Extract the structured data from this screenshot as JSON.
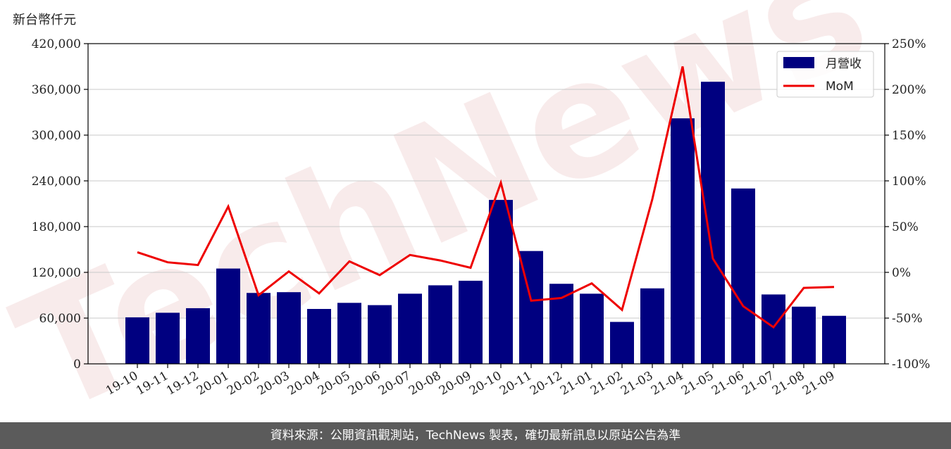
{
  "header": {
    "unit_label": "新台幣仟元"
  },
  "watermark": "TechNews",
  "footer": {
    "source_text": "資料來源：公開資訊觀測站，TechNews 製表，確切最新訊息以原站公告為準"
  },
  "chart_data": {
    "type": "bar",
    "categories": [
      "19-10",
      "19-11",
      "19-12",
      "20-01",
      "20-02",
      "20-03",
      "20-04",
      "20-05",
      "20-06",
      "20-07",
      "20-08",
      "20-09",
      "20-10",
      "20-11",
      "20-12",
      "21-01",
      "21-02",
      "21-03",
      "21-04",
      "21-05",
      "21-06",
      "21-07",
      "21-08",
      "21-09"
    ],
    "series": [
      {
        "name": "月營收",
        "type": "bar",
        "axis": "left",
        "color": "#000080",
        "values": [
          61000,
          67000,
          73000,
          125000,
          93000,
          94000,
          72000,
          80000,
          77000,
          92000,
          103000,
          109000,
          215000,
          148000,
          105000,
          92000,
          55000,
          99000,
          322000,
          370000,
          230000,
          91000,
          75000,
          63000
        ]
      },
      {
        "name": "MoM",
        "type": "line",
        "axis": "right",
        "color": "#ee0000",
        "values": [
          22,
          11,
          8,
          72,
          -25,
          1,
          -23,
          12,
          -3,
          19,
          13,
          5,
          98,
          -31,
          -28,
          -12,
          -41,
          80,
          225,
          15,
          -37,
          -60,
          -17,
          -16
        ]
      }
    ],
    "ylim_left": [
      0,
      420000
    ],
    "yticks_left": [
      "0",
      "60,000",
      "120,000",
      "180,000",
      "240,000",
      "300,000",
      "360,000",
      "420,000"
    ],
    "ylim_right": [
      -100,
      250
    ],
    "yticks_right": [
      "-100%",
      "-50%",
      "0%",
      "50%",
      "100%",
      "150%",
      "200%",
      "250%"
    ],
    "grid": "horizontal",
    "legend_position": "top-right"
  }
}
